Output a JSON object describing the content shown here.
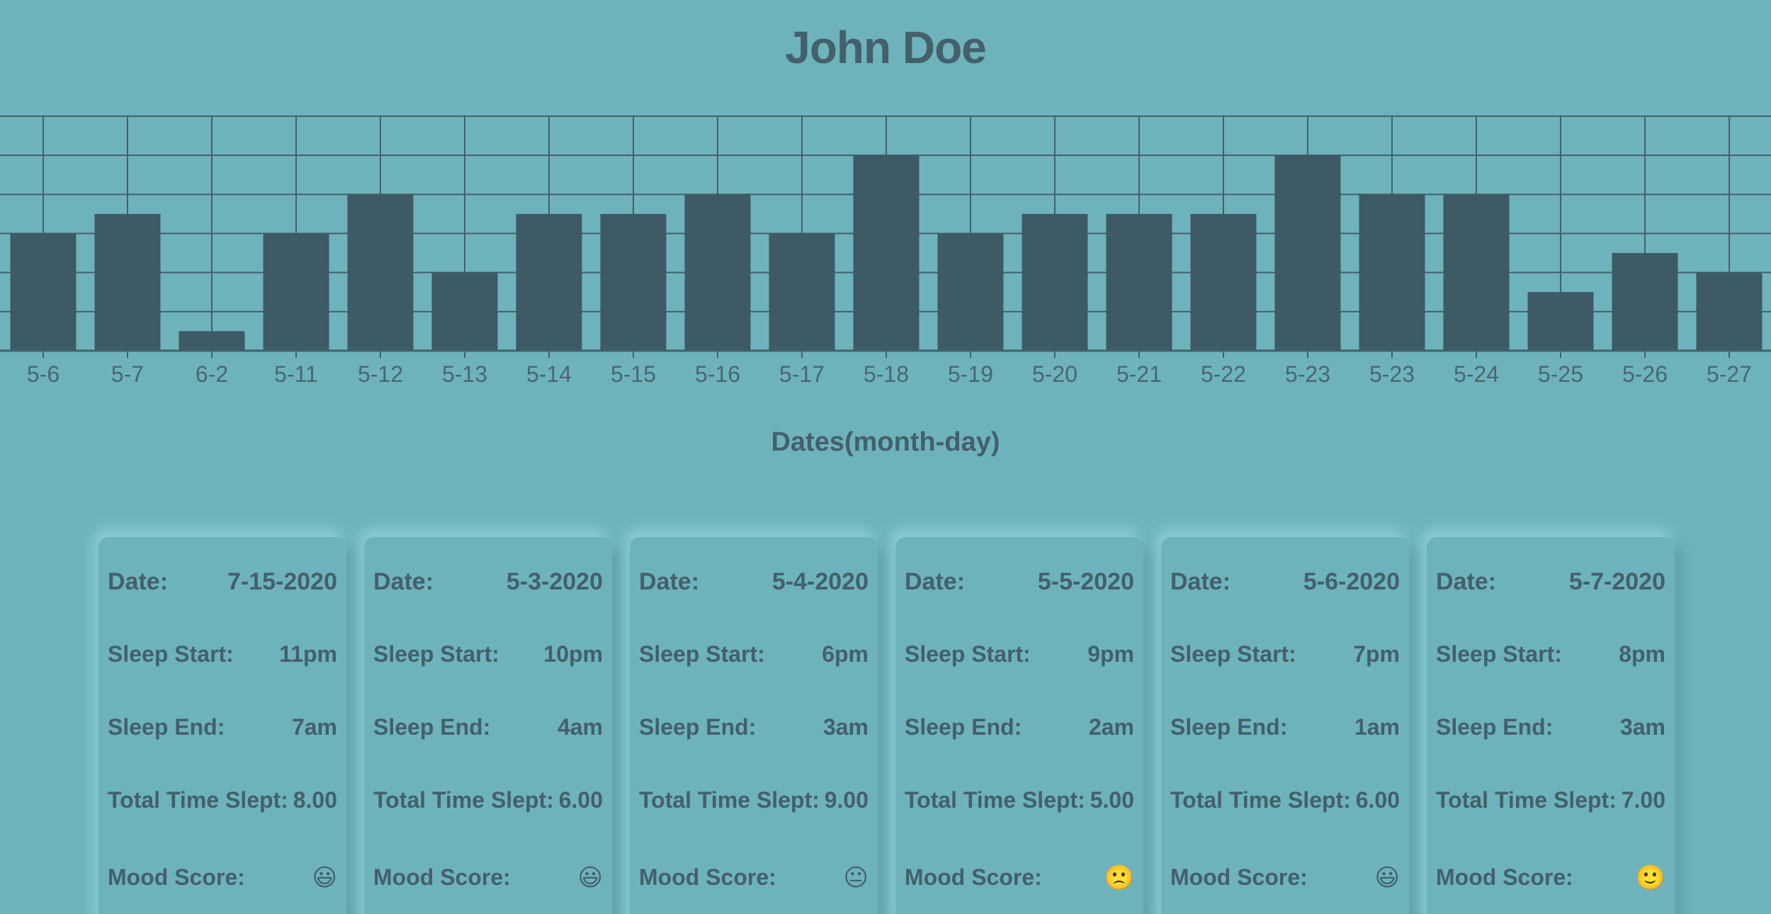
{
  "header": {
    "title": "John Doe"
  },
  "chart_data": {
    "type": "bar",
    "title": "John Doe",
    "xlabel": "Dates(month-day)",
    "ylabel": "",
    "categories": [
      "5-6",
      "5-7",
      "6-2",
      "5-11",
      "5-12",
      "5-13",
      "5-14",
      "5-15",
      "5-16",
      "5-17",
      "5-18",
      "5-19",
      "5-20",
      "5-21",
      "5-22",
      "5-23",
      "5-23",
      "5-24",
      "5-25",
      "5-26",
      "5-27"
    ],
    "values": [
      6,
      7,
      1,
      6,
      8,
      4,
      7,
      7,
      8,
      6,
      10,
      6,
      7,
      7,
      7,
      10,
      8,
      8,
      3,
      5,
      4
    ],
    "ylim": [
      0,
      12
    ],
    "grid": true,
    "bar_color": "#3d5a66",
    "grid_color": "#43606b"
  },
  "cards_section": {
    "labels": {
      "date": "Date:",
      "sleep_start": "Sleep Start:",
      "sleep_end": "Sleep End:",
      "total": "Total Time Slept:",
      "mood": "Mood Score:"
    },
    "cards": [
      {
        "date": "7-15-2020",
        "sleep_start": "11pm",
        "sleep_end": "7am",
        "total": "8.00",
        "mood": "😃",
        "mood_icon": "grinning-face-icon"
      },
      {
        "date": "5-3-2020",
        "sleep_start": "10pm",
        "sleep_end": "4am",
        "total": "6.00",
        "mood": "😃",
        "mood_icon": "grinning-face-icon"
      },
      {
        "date": "5-4-2020",
        "sleep_start": "6pm",
        "sleep_end": "3am",
        "total": "9.00",
        "mood": "😐",
        "mood_icon": "neutral-face-icon"
      },
      {
        "date": "5-5-2020",
        "sleep_start": "9pm",
        "sleep_end": "2am",
        "total": "5.00",
        "mood": "🙁",
        "mood_icon": "frowning-face-icon"
      },
      {
        "date": "5-6-2020",
        "sleep_start": "7pm",
        "sleep_end": "1am",
        "total": "6.00",
        "mood": "😃",
        "mood_icon": "grinning-face-icon"
      },
      {
        "date": "5-7-2020",
        "sleep_start": "8pm",
        "sleep_end": "3am",
        "total": "7.00",
        "mood": "🙂",
        "mood_icon": "slightly-smiling-face-icon"
      }
    ]
  }
}
